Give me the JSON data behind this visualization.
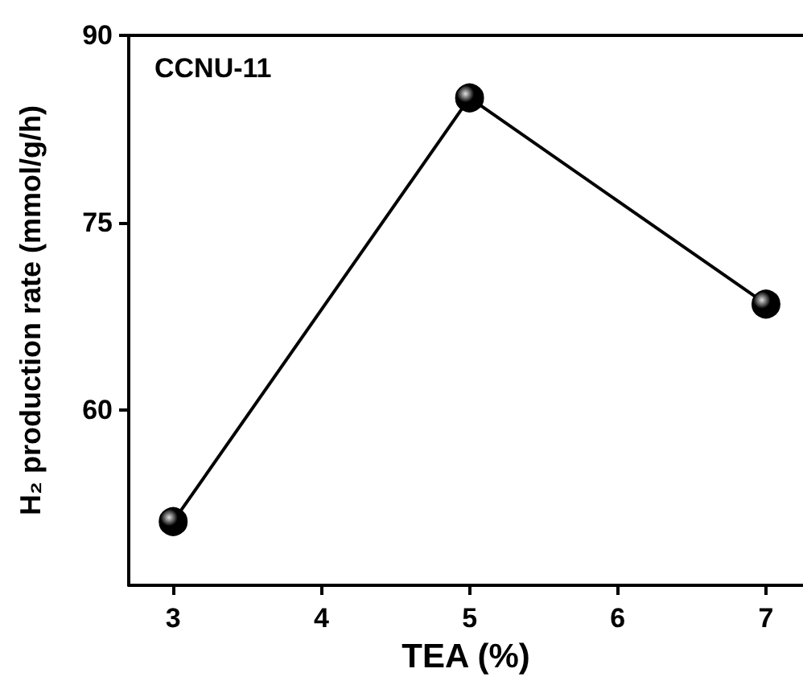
{
  "chart_data": {
    "type": "line",
    "xlabel": "TEA (%)",
    "ylabel": "H₂ production rate (mmol/g/h)",
    "annotations": [
      "CCNU-11"
    ],
    "x": [
      3,
      5,
      7
    ],
    "series": [
      {
        "color": "#000000",
        "values": [
          51.1,
          85.0,
          68.5
        ]
      }
    ],
    "xlim": [
      2.7,
      7.25
    ],
    "xticks": [
      3,
      4,
      5,
      6,
      7
    ],
    "ylim": [
      46,
      90
    ],
    "yticks": [
      60,
      75,
      90
    ],
    "grid": false,
    "marker": "circle",
    "line_style": "solid"
  }
}
